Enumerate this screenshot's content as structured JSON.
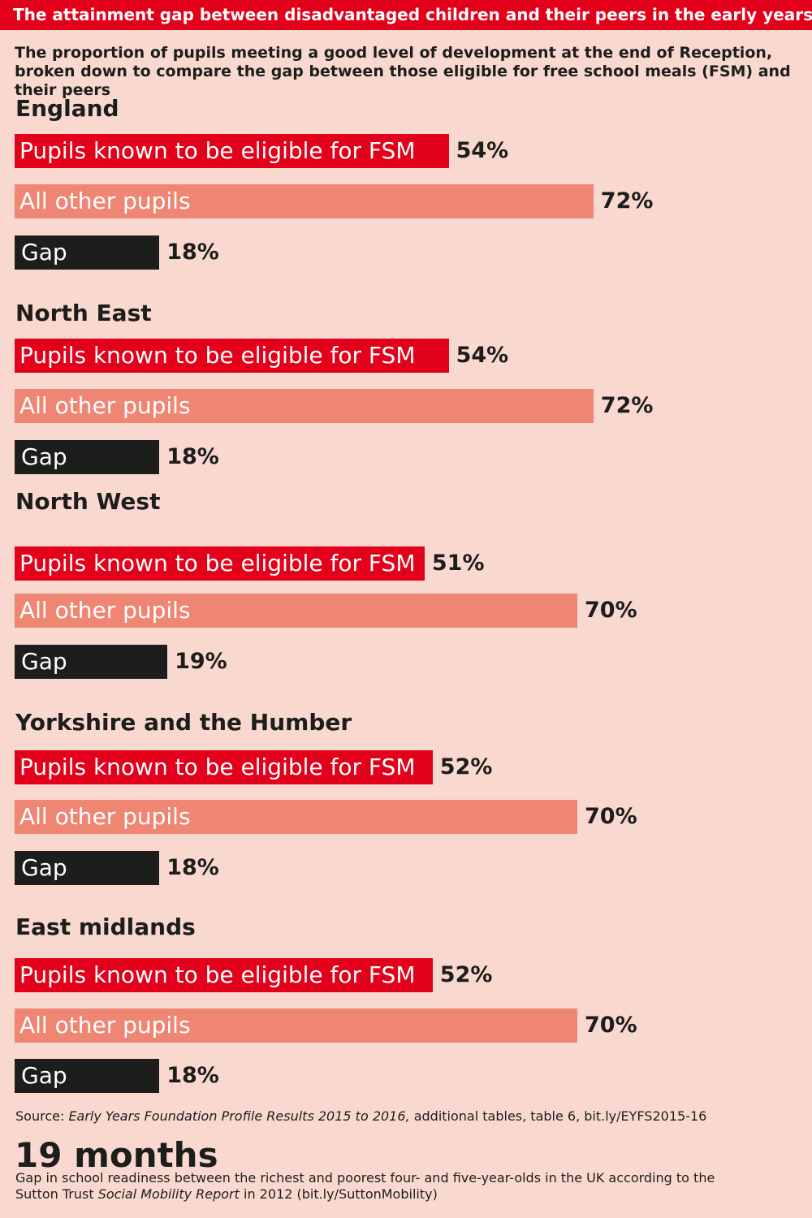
{
  "header": {
    "title": "The attainment gap between disadvantaged children and their peers in the early years",
    "subtitle": "The proportion of pupils meeting a good level of development at the end of Reception, broken down to compare the gap between those eligible for free school meals (FSM) and their peers"
  },
  "colors": {
    "background": "#f9d9cf",
    "fsm": "#e2001a",
    "other": "#ef8573",
    "gap": "#1d1d1b"
  },
  "chart_data": {
    "type": "bar",
    "orientation": "horizontal",
    "unit": "%",
    "xlim": [
      0,
      100
    ],
    "bar_labels": [
      "Pupils known to be eligible for FSM",
      "All other pupils",
      "Gap"
    ],
    "regions": [
      {
        "name": "England",
        "fsm": 54,
        "other": 72,
        "gap": 18
      },
      {
        "name": "North East",
        "fsm": 54,
        "other": 72,
        "gap": 18
      },
      {
        "name": "North West",
        "fsm": 51,
        "other": 70,
        "gap": 19
      },
      {
        "name": "Yorkshire and the Humber",
        "fsm": 52,
        "other": 70,
        "gap": 18
      },
      {
        "name": "East midlands",
        "fsm": 52,
        "other": 70,
        "gap": 18
      }
    ]
  },
  "source": {
    "prefix": "Source: ",
    "title": "Early Years Foundation Profile Results 2015 to 2016,",
    "rest": " additional tables, table 6, bit.ly/EYFS2015-16"
  },
  "stat": {
    "value": "19 months",
    "text_before": "Gap in school readiness between the richest and poorest four- and five-year-olds in the UK according to the Sutton Trust ",
    "text_italic": "Social Mobility Report",
    "text_after": " in 2012 (bit.ly/SuttonMobility)"
  }
}
